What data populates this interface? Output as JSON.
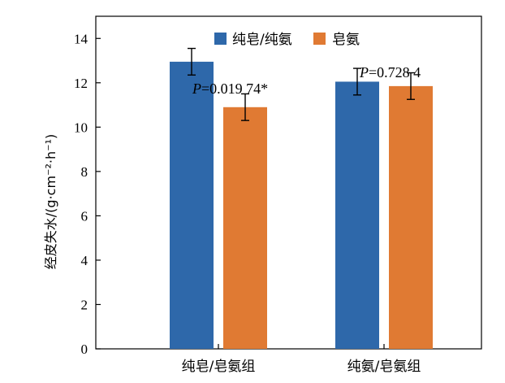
{
  "chart_data": {
    "type": "bar",
    "categories": [
      "纯皂/皂氨组",
      "纯氨/皂氨组"
    ],
    "series": [
      {
        "name": "纯皂/纯氨",
        "color": "#2E68AA",
        "values": [
          12.95,
          12.05
        ],
        "errors": [
          0.6,
          0.6
        ]
      },
      {
        "name": "皂氨",
        "color": "#E07A33",
        "values": [
          10.9,
          11.85
        ],
        "errors": [
          0.6,
          0.6
        ]
      }
    ],
    "ylabel": "经皮失水/(g·cm⁻²·h⁻¹)",
    "ylim": [
      0,
      15
    ],
    "yticks": [
      "0",
      "2",
      "4",
      "6",
      "8",
      "10",
      "12",
      "14"
    ],
    "annotations": [
      {
        "category": 0,
        "text_p": "P",
        "text_val": "=0.019 74*"
      },
      {
        "category": 1,
        "text_p": "P",
        "text_val": "=0.728 4"
      }
    ],
    "legend_position": "top-center",
    "grid": false
  }
}
